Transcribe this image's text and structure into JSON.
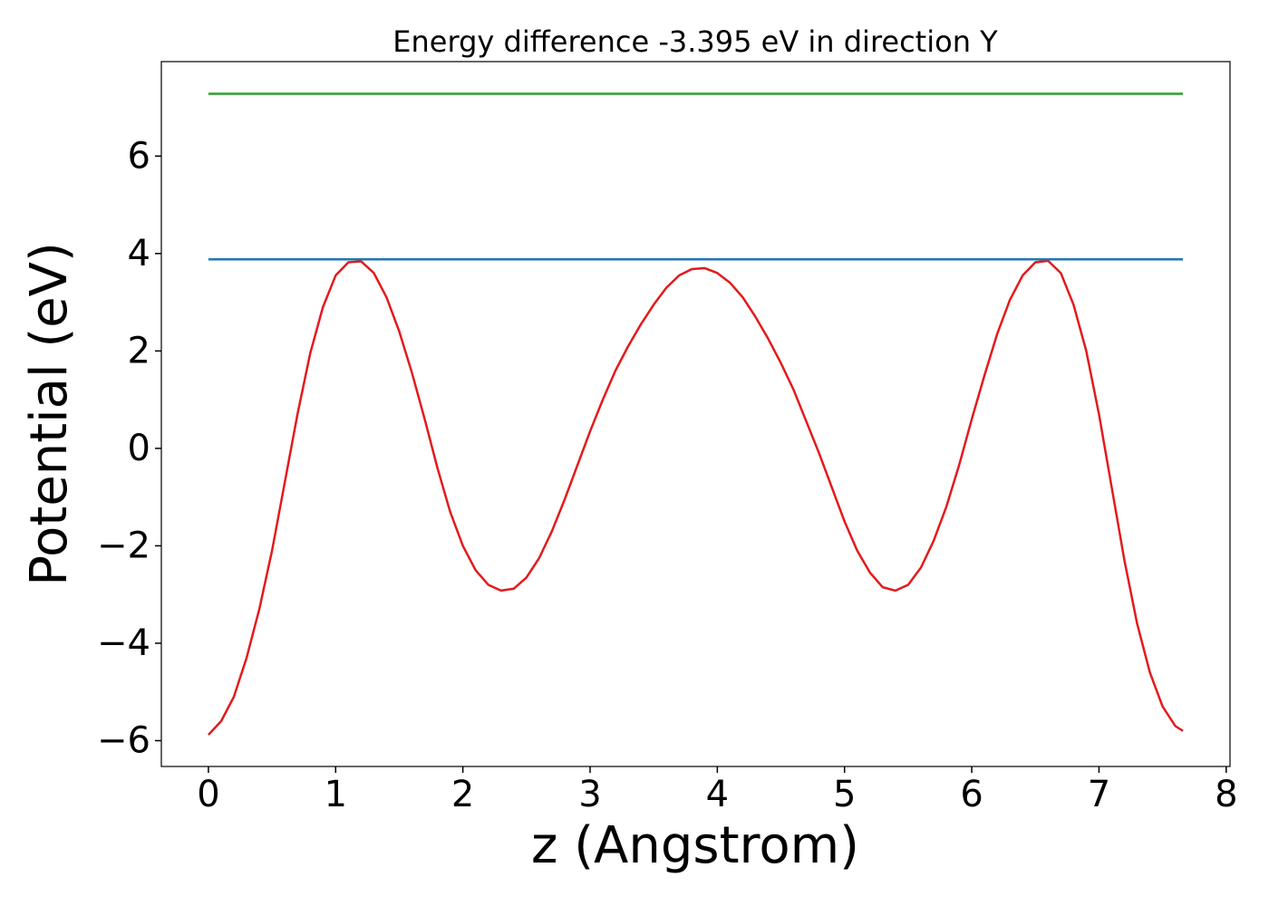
{
  "chart_data": {
    "type": "line",
    "title": "Energy difference -3.395 eV in direction Y",
    "xlabel": "z (Angstrom)",
    "ylabel": "Potential (eV)",
    "series": [
      {
        "color": "#e31a1c",
        "x": [
          0,
          0.1,
          0.2,
          0.3,
          0.4,
          0.5,
          0.6,
          0.7,
          0.8,
          0.9,
          1.0,
          1.1,
          1.2,
          1.3,
          1.4,
          1.5,
          1.6,
          1.7,
          1.8,
          1.9,
          2.0,
          2.1,
          2.2,
          2.3,
          2.4,
          2.5,
          2.6,
          2.7,
          2.8,
          2.9,
          3.0,
          3.1,
          3.2,
          3.3,
          3.4,
          3.5,
          3.6,
          3.7,
          3.8,
          3.9,
          4.0,
          4.1,
          4.2,
          4.3,
          4.4,
          4.5,
          4.6,
          4.7,
          4.8,
          4.9,
          5.0,
          5.1,
          5.2,
          5.3,
          5.4,
          5.5,
          5.6,
          5.7,
          5.8,
          5.9,
          6.0,
          6.1,
          6.2,
          6.3,
          6.4,
          6.5,
          6.6,
          6.7,
          6.8,
          6.9,
          7.0,
          7.1,
          7.2,
          7.3,
          7.4,
          7.5,
          7.6,
          7.66
        ],
        "values": [
          -5.88,
          -5.6,
          -5.1,
          -4.3,
          -3.3,
          -2.1,
          -0.7,
          0.7,
          1.95,
          2.9,
          3.55,
          3.82,
          3.84,
          3.6,
          3.1,
          2.4,
          1.55,
          0.6,
          -0.4,
          -1.3,
          -2.0,
          -2.5,
          -2.8,
          -2.92,
          -2.88,
          -2.65,
          -2.25,
          -1.7,
          -1.05,
          -0.35,
          0.35,
          1.0,
          1.6,
          2.1,
          2.55,
          2.95,
          3.3,
          3.55,
          3.68,
          3.7,
          3.6,
          3.4,
          3.1,
          2.7,
          2.25,
          1.75,
          1.2,
          0.55,
          -0.1,
          -0.8,
          -1.5,
          -2.1,
          -2.55,
          -2.85,
          -2.92,
          -2.8,
          -2.45,
          -1.9,
          -1.2,
          -0.35,
          0.6,
          1.5,
          2.35,
          3.05,
          3.55,
          3.82,
          3.85,
          3.6,
          2.95,
          2.0,
          0.7,
          -0.8,
          -2.3,
          -3.6,
          -4.6,
          -5.3,
          -5.7,
          -5.8
        ]
      },
      {
        "color": "#1f77b4",
        "x": [
          0,
          7.66
        ],
        "values": [
          3.88,
          3.88
        ]
      },
      {
        "color": "#2ca02c",
        "x": [
          0,
          7.66
        ],
        "values": [
          7.28,
          7.28
        ]
      }
    ],
    "xlim": [
      -0.37,
      8.03
    ],
    "ylim": [
      -6.53,
      7.94
    ],
    "xticks": [
      0,
      1,
      2,
      3,
      4,
      5,
      6,
      7,
      8
    ],
    "yticks": [
      {
        "value": -6,
        "label": "−6"
      },
      {
        "value": -4,
        "label": "−4"
      },
      {
        "value": -2,
        "label": "−2"
      },
      0,
      2,
      4,
      6
    ],
    "grid": false
  }
}
